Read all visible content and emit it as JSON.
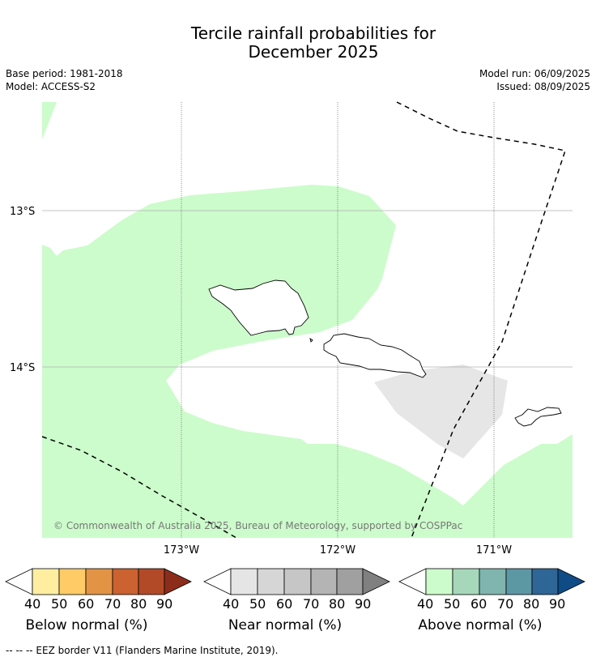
{
  "title_line1": "Tercile rainfall probabilities for",
  "title_line2": "December 2025",
  "base_period": "Base period: 1981-2018",
  "model": "Model: ACCESS-S2",
  "model_run": "Model run: 06/09/2025",
  "issued": "Issued: 08/09/2025",
  "lat_labels": [
    "13°S",
    "14°S"
  ],
  "lon_labels": [
    "173°W",
    "172°W",
    "171°W"
  ],
  "copyright": "© Commonwealth of Australia 2025, Bureau of Meteorology, supported by COSPPac",
  "colorbars": [
    {
      "label": "Below normal (%)",
      "ticks": [
        "40",
        "50",
        "60",
        "70",
        "80",
        "90"
      ],
      "colors": [
        "#ffffff",
        "#ffeea0",
        "#fecb66",
        "#e29444",
        "#cb622f",
        "#b24a28",
        "#8c2d1b"
      ]
    },
    {
      "label": "Near normal (%)",
      "ticks": [
        "40",
        "50",
        "60",
        "70",
        "80",
        "90"
      ],
      "colors": [
        "#ffffff",
        "#e5e5e5",
        "#d6d6d6",
        "#c6c6c6",
        "#b4b4b4",
        "#a0a0a0",
        "#808080"
      ]
    },
    {
      "label": "Above normal (%)",
      "ticks": [
        "40",
        "50",
        "60",
        "70",
        "80",
        "90"
      ],
      "colors": [
        "#ffffff",
        "#ccfccb",
        "#a6d7ba",
        "#7fb5ae",
        "#5c97a4",
        "#2e6697",
        "#0f4c86"
      ]
    }
  ],
  "map_colors": {
    "above_normal_fill": "#ccfccb",
    "near_normal_fill": "#e6e6e6"
  },
  "footnote": "--  --  -- EEZ border V11 (Flanders Marine Institute, 2019)."
}
